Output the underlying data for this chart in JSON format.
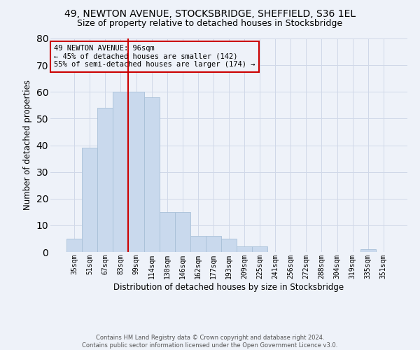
{
  "title_line1": "49, NEWTON AVENUE, STOCKSBRIDGE, SHEFFIELD, S36 1EL",
  "title_line2": "Size of property relative to detached houses in Stocksbridge",
  "xlabel": "Distribution of detached houses by size in Stocksbridge",
  "ylabel": "Number of detached properties",
  "footnote_line1": "Contains HM Land Registry data © Crown copyright and database right 2024.",
  "footnote_line2": "Contains public sector information licensed under the Open Government Licence v3.0.",
  "bin_labels": [
    "35sqm",
    "51sqm",
    "67sqm",
    "83sqm",
    "99sqm",
    "114sqm",
    "130sqm",
    "146sqm",
    "162sqm",
    "177sqm",
    "193sqm",
    "209sqm",
    "225sqm",
    "241sqm",
    "256sqm",
    "272sqm",
    "288sqm",
    "304sqm",
    "319sqm",
    "335sqm",
    "351sqm"
  ],
  "bar_heights": [
    5,
    39,
    54,
    60,
    60,
    58,
    15,
    15,
    6,
    6,
    5,
    2,
    2,
    0,
    0,
    0,
    0,
    0,
    0,
    1,
    0
  ],
  "bar_color": "#c9d9ed",
  "bar_edge_color": "#a8c0d8",
  "grid_color": "#d0d8e8",
  "vline_x_index": 4,
  "vline_color": "#cc0000",
  "annotation_text": "49 NEWTON AVENUE: 96sqm\n← 45% of detached houses are smaller (142)\n55% of semi-detached houses are larger (174) →",
  "annotation_box_color": "#cc0000",
  "ylim": [
    0,
    80
  ],
  "yticks": [
    0,
    10,
    20,
    30,
    40,
    50,
    60,
    70,
    80
  ],
  "background_color": "#eef2f9",
  "title_fontsize": 10,
  "subtitle_fontsize": 9,
  "annot_fontsize": 7.5,
  "xlabel_fontsize": 8.5,
  "ylabel_fontsize": 8.5,
  "tick_fontsize": 7,
  "footnote_fontsize": 6
}
